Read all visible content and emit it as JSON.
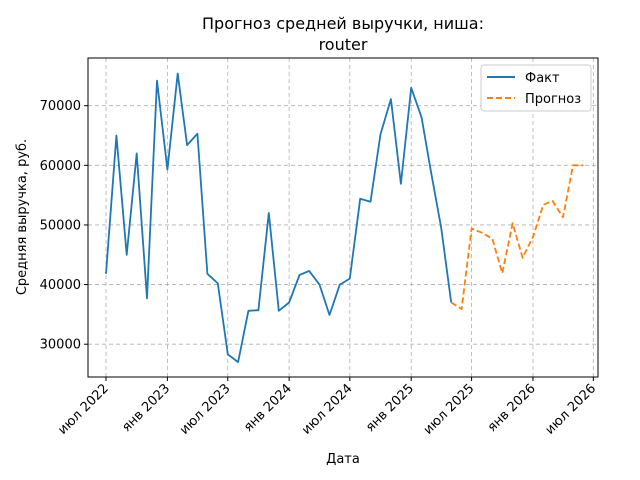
{
  "chart_data": {
    "type": "line",
    "title_line1": "Прогноз средней выручки, ниша:",
    "title_line2": "router",
    "xlabel": "Дата",
    "ylabel": "Средняя выручка, руб.",
    "x_range": [
      "2022-05-08",
      "2026-07-15"
    ],
    "ylim": [
      24500,
      78000
    ],
    "x_ticks": [
      {
        "date": "2022-07-01",
        "label": "июл 2022"
      },
      {
        "date": "2023-01-01",
        "label": "янв 2023"
      },
      {
        "date": "2023-07-01",
        "label": "июл 2023"
      },
      {
        "date": "2024-01-01",
        "label": "янв 2024"
      },
      {
        "date": "2024-07-01",
        "label": "июл 2024"
      },
      {
        "date": "2025-01-01",
        "label": "янв 2025"
      },
      {
        "date": "2025-07-01",
        "label": "июл 2025"
      },
      {
        "date": "2026-01-01",
        "label": "янв 2026"
      },
      {
        "date": "2026-07-01",
        "label": "июл 2026"
      }
    ],
    "y_ticks": [
      30000,
      40000,
      50000,
      60000,
      70000
    ],
    "grid": true,
    "legend_position": "top-right",
    "series": [
      {
        "name": "Факт",
        "color": "#1f77b4",
        "dash": "solid",
        "x": [
          "2022-07-01",
          "2022-08-01",
          "2022-09-01",
          "2022-10-01",
          "2022-11-01",
          "2022-12-01",
          "2023-01-01",
          "2023-02-01",
          "2023-03-01",
          "2023-04-01",
          "2023-05-01",
          "2023-06-01",
          "2023-07-01",
          "2023-08-01",
          "2023-09-01",
          "2023-10-01",
          "2023-11-01",
          "2023-12-01",
          "2024-01-01",
          "2024-02-01",
          "2024-03-01",
          "2024-04-01",
          "2024-05-01",
          "2024-06-01",
          "2024-07-01",
          "2024-08-01",
          "2024-09-01",
          "2024-10-01",
          "2024-11-01",
          "2024-12-01",
          "2025-01-01",
          "2025-02-01",
          "2025-03-01",
          "2025-04-01",
          "2025-05-01"
        ],
        "y": [
          41800,
          65000,
          45000,
          62000,
          37700,
          74200,
          59300,
          75400,
          63400,
          65300,
          41800,
          40200,
          28300,
          27000,
          35600,
          35700,
          52000,
          35600,
          37000,
          41600,
          42300,
          40000,
          34900,
          40000,
          41000,
          54400,
          53900,
          65200,
          71100,
          56900,
          73000,
          68000,
          59000,
          49500,
          37000
        ]
      },
      {
        "name": "Прогноз",
        "color": "#ff7f0e",
        "dash": "dashed",
        "x": [
          "2025-05-01",
          "2025-06-01",
          "2025-07-01",
          "2025-08-01",
          "2025-09-01",
          "2025-10-01",
          "2025-11-01",
          "2025-12-01",
          "2026-01-01",
          "2026-02-01",
          "2026-03-01",
          "2026-04-01",
          "2026-05-01",
          "2026-06-01"
        ],
        "y": [
          37000,
          35900,
          49400,
          48700,
          47700,
          41900,
          50300,
          44500,
          48000,
          53400,
          54000,
          51300,
          60000,
          60000
        ]
      }
    ]
  }
}
